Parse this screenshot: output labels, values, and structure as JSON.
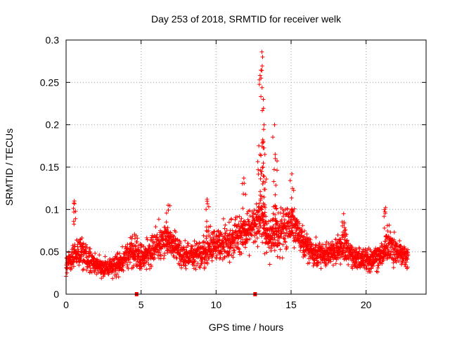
{
  "chart_data": {
    "type": "scatter",
    "title": "Day 253 of 2018, SRMTID for receiver welk",
    "xlabel": "GPS time / hours",
    "ylabel": "SRMTID / TECUs",
    "xlim": [
      0,
      24
    ],
    "ylim": [
      0,
      0.3
    ],
    "xticks": [
      0,
      5,
      10,
      15,
      20
    ],
    "xtick_labels": [
      "0",
      "5",
      "10",
      "15",
      "20"
    ],
    "yticks": [
      0,
      0.05,
      0.1,
      0.15,
      0.2,
      0.25,
      0.3
    ],
    "ytick_labels": [
      "0",
      "0.05",
      "0.1",
      "0.15",
      "0.2",
      "0.25",
      "0.3"
    ],
    "grid": true,
    "marker": "plus",
    "marker_color": "#ff0000",
    "gap_markers_x": [
      4.7,
      12.6
    ],
    "series": [
      {
        "name": "SRMTID",
        "x_start": 0.0,
        "x_end": 22.8,
        "envelope_hours": [
          0,
          0.5,
          1,
          1.5,
          2,
          2.5,
          3,
          3.5,
          4,
          4.5,
          5,
          5.5,
          6,
          6.5,
          7,
          7.5,
          8,
          8.5,
          9,
          9.5,
          10,
          10.5,
          11,
          11.5,
          12,
          12.5,
          13,
          13.5,
          14,
          14.5,
          15,
          15.5,
          16,
          16.5,
          17,
          17.5,
          18,
          18.5,
          19,
          19.5,
          20,
          20.5,
          21,
          21.5,
          22,
          22.5,
          22.8
        ],
        "envelope_mean": [
          0.035,
          0.045,
          0.05,
          0.04,
          0.035,
          0.03,
          0.032,
          0.036,
          0.045,
          0.055,
          0.045,
          0.05,
          0.058,
          0.065,
          0.06,
          0.05,
          0.045,
          0.045,
          0.048,
          0.055,
          0.058,
          0.06,
          0.065,
          0.07,
          0.075,
          0.08,
          0.09,
          0.065,
          0.07,
          0.08,
          0.085,
          0.07,
          0.055,
          0.05,
          0.045,
          0.048,
          0.05,
          0.055,
          0.045,
          0.042,
          0.04,
          0.04,
          0.045,
          0.06,
          0.05,
          0.045,
          0.042
        ],
        "envelope_spread": [
          0.012,
          0.015,
          0.02,
          0.014,
          0.01,
          0.01,
          0.01,
          0.012,
          0.015,
          0.018,
          0.015,
          0.016,
          0.018,
          0.02,
          0.018,
          0.016,
          0.014,
          0.014,
          0.015,
          0.02,
          0.018,
          0.02,
          0.022,
          0.022,
          0.022,
          0.022,
          0.025,
          0.022,
          0.025,
          0.025,
          0.025,
          0.02,
          0.016,
          0.015,
          0.013,
          0.014,
          0.015,
          0.018,
          0.014,
          0.012,
          0.012,
          0.012,
          0.014,
          0.02,
          0.015,
          0.012,
          0.012
        ],
        "peaks": [
          {
            "x": 0.55,
            "y": 0.11
          },
          {
            "x": 6.8,
            "y": 0.105
          },
          {
            "x": 9.4,
            "y": 0.112
          },
          {
            "x": 11.85,
            "y": 0.137
          },
          {
            "x": 12.85,
            "y": 0.175
          },
          {
            "x": 13.0,
            "y": 0.255
          },
          {
            "x": 13.05,
            "y": 0.286
          },
          {
            "x": 13.1,
            "y": 0.28
          },
          {
            "x": 13.15,
            "y": 0.23
          },
          {
            "x": 13.2,
            "y": 0.2
          },
          {
            "x": 13.25,
            "y": 0.165
          },
          {
            "x": 13.9,
            "y": 0.2
          },
          {
            "x": 13.95,
            "y": 0.16
          },
          {
            "x": 15.05,
            "y": 0.142
          },
          {
            "x": 18.5,
            "y": 0.095
          },
          {
            "x": 21.3,
            "y": 0.102
          }
        ]
      }
    ]
  }
}
